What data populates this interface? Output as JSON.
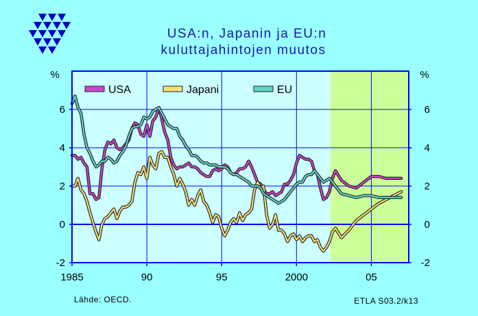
{
  "header": {
    "title_line1": "USA:n, Japanin ja EU:n",
    "title_line2": "kuluttajahintojen muutos"
  },
  "footer": {
    "source": "Lähde:  OECD.",
    "code": "ETLA S03.2/k13"
  },
  "colors": {
    "background": "#99ffff",
    "plot_background": "#ccffff",
    "forecast_background": "#ccff99",
    "frame": "#0000ff",
    "usa": "#cc44cc",
    "japan": "#f5e07a",
    "eu": "#5fd6c8",
    "logo": "#0000cc"
  },
  "chart_data": {
    "type": "line",
    "title": "USA:n, Japanin ja EU:n kuluttajahintojen muutos",
    "ylabel_left": "%",
    "ylabel_right": "%",
    "xlim": [
      1985,
      2007.5
    ],
    "ylim": [
      -2,
      8
    ],
    "x_ticks": [
      1985,
      1990,
      1995,
      2000,
      2005
    ],
    "x_tick_labels": [
      "1985",
      "90",
      "95",
      "2000",
      "05"
    ],
    "y_ticks": [
      -2,
      0,
      2,
      4,
      6
    ],
    "y_tick_labels": [
      "-2",
      "0",
      "2",
      "4",
      "6"
    ],
    "grid": true,
    "forecast_start": 2002.25,
    "legend_position": "top-left",
    "series": [
      {
        "name": "USA",
        "color_key": "usa",
        "points": [
          [
            1985.0,
            3.6
          ],
          [
            1985.2,
            3.6
          ],
          [
            1985.4,
            3.4
          ],
          [
            1985.6,
            3.5
          ],
          [
            1985.8,
            3.2
          ],
          [
            1986.0,
            3.0
          ],
          [
            1986.2,
            1.6
          ],
          [
            1986.4,
            1.6
          ],
          [
            1986.6,
            1.3
          ],
          [
            1986.8,
            1.4
          ],
          [
            1987.0,
            2.9
          ],
          [
            1987.2,
            3.9
          ],
          [
            1987.4,
            4.3
          ],
          [
            1987.6,
            4.2
          ],
          [
            1987.8,
            4.4
          ],
          [
            1988.0,
            4.0
          ],
          [
            1988.2,
            3.9
          ],
          [
            1988.4,
            4.0
          ],
          [
            1988.6,
            4.2
          ],
          [
            1988.8,
            4.4
          ],
          [
            1989.0,
            5.0
          ],
          [
            1989.2,
            5.3
          ],
          [
            1989.4,
            5.2
          ],
          [
            1989.6,
            4.7
          ],
          [
            1989.8,
            4.6
          ],
          [
            1990.0,
            5.2
          ],
          [
            1990.2,
            4.6
          ],
          [
            1990.4,
            5.4
          ],
          [
            1990.6,
            5.6
          ],
          [
            1990.8,
            6.1
          ],
          [
            1991.0,
            5.5
          ],
          [
            1991.2,
            4.8
          ],
          [
            1991.4,
            4.4
          ],
          [
            1991.6,
            3.5
          ],
          [
            1991.8,
            3.1
          ],
          [
            1992.0,
            2.9
          ],
          [
            1992.2,
            3.0
          ],
          [
            1992.4,
            3.0
          ],
          [
            1992.6,
            3.1
          ],
          [
            1992.8,
            3.2
          ],
          [
            1993.0,
            3.0
          ],
          [
            1993.2,
            3.0
          ],
          [
            1993.4,
            2.9
          ],
          [
            1993.6,
            2.7
          ],
          [
            1993.8,
            2.6
          ],
          [
            1994.0,
            2.5
          ],
          [
            1994.2,
            2.5
          ],
          [
            1994.4,
            2.8
          ],
          [
            1994.6,
            2.9
          ],
          [
            1994.8,
            2.8
          ],
          [
            1995.0,
            2.9
          ],
          [
            1995.2,
            3.1
          ],
          [
            1995.4,
            3.0
          ],
          [
            1995.6,
            2.7
          ],
          [
            1995.8,
            2.6
          ],
          [
            1996.0,
            2.7
          ],
          [
            1996.2,
            2.9
          ],
          [
            1996.4,
            2.9
          ],
          [
            1996.6,
            3.0
          ],
          [
            1996.8,
            3.3
          ],
          [
            1997.0,
            3.0
          ],
          [
            1997.2,
            2.6
          ],
          [
            1997.4,
            2.2
          ],
          [
            1997.6,
            2.1
          ],
          [
            1997.8,
            1.8
          ],
          [
            1998.0,
            1.6
          ],
          [
            1998.2,
            1.6
          ],
          [
            1998.4,
            1.7
          ],
          [
            1998.6,
            1.5
          ],
          [
            1998.8,
            1.6
          ],
          [
            1999.0,
            1.7
          ],
          [
            1999.2,
            2.1
          ],
          [
            1999.4,
            2.1
          ],
          [
            1999.6,
            2.3
          ],
          [
            1999.8,
            2.6
          ],
          [
            2000.0,
            3.2
          ],
          [
            2000.2,
            3.6
          ],
          [
            2000.4,
            3.5
          ],
          [
            2000.6,
            3.4
          ],
          [
            2000.8,
            3.4
          ],
          [
            2001.0,
            3.3
          ],
          [
            2001.2,
            2.8
          ],
          [
            2001.4,
            2.6
          ],
          [
            2001.6,
            1.9
          ],
          [
            2001.8,
            1.3
          ],
          [
            2002.0,
            1.4
          ],
          [
            2002.2,
            1.7
          ],
          [
            2002.4,
            2.4
          ],
          [
            2002.6,
            2.8
          ],
          [
            2003.0,
            2.3
          ],
          [
            2003.5,
            2.0
          ],
          [
            2004.0,
            1.9
          ],
          [
            2004.5,
            2.2
          ],
          [
            2005.0,
            2.5
          ],
          [
            2005.5,
            2.5
          ],
          [
            2006.0,
            2.4
          ],
          [
            2007.0,
            2.4
          ]
        ]
      },
      {
        "name": "Japani",
        "color_key": "japan",
        "points": [
          [
            1985.0,
            2.0
          ],
          [
            1985.2,
            2.0
          ],
          [
            1985.4,
            2.4
          ],
          [
            1985.6,
            1.8
          ],
          [
            1985.8,
            1.6
          ],
          [
            1986.0,
            1.2
          ],
          [
            1986.2,
            0.6
          ],
          [
            1986.4,
            0.1
          ],
          [
            1986.6,
            -0.4
          ],
          [
            1986.8,
            -0.8
          ],
          [
            1987.0,
            0.0
          ],
          [
            1987.2,
            0.3
          ],
          [
            1987.4,
            0.4
          ],
          [
            1987.6,
            0.6
          ],
          [
            1987.8,
            0.8
          ],
          [
            1988.0,
            0.3
          ],
          [
            1988.2,
            0.7
          ],
          [
            1988.4,
            0.9
          ],
          [
            1988.6,
            0.9
          ],
          [
            1988.8,
            1.0
          ],
          [
            1989.0,
            1.2
          ],
          [
            1989.2,
            2.2
          ],
          [
            1989.4,
            2.7
          ],
          [
            1989.6,
            2.6
          ],
          [
            1989.8,
            3.0
          ],
          [
            1990.0,
            2.4
          ],
          [
            1990.2,
            3.5
          ],
          [
            1990.4,
            3.1
          ],
          [
            1990.6,
            2.9
          ],
          [
            1990.8,
            3.7
          ],
          [
            1991.0,
            3.8
          ],
          [
            1991.2,
            3.5
          ],
          [
            1991.4,
            3.5
          ],
          [
            1991.6,
            3.0
          ],
          [
            1991.8,
            2.6
          ],
          [
            1992.0,
            2.0
          ],
          [
            1992.2,
            2.4
          ],
          [
            1992.4,
            2.1
          ],
          [
            1992.6,
            1.7
          ],
          [
            1992.8,
            1.0
          ],
          [
            1993.0,
            1.3
          ],
          [
            1993.2,
            1.0
          ],
          [
            1993.4,
            1.5
          ],
          [
            1993.6,
            1.8
          ],
          [
            1993.8,
            1.2
          ],
          [
            1994.0,
            1.0
          ],
          [
            1994.2,
            0.6
          ],
          [
            1994.4,
            0.1
          ],
          [
            1994.6,
            0.5
          ],
          [
            1994.8,
            0.4
          ],
          [
            1995.0,
            -0.2
          ],
          [
            1995.2,
            -0.6
          ],
          [
            1995.4,
            -0.3
          ],
          [
            1995.6,
            0.1
          ],
          [
            1995.8,
            0.3
          ],
          [
            1996.0,
            0.1
          ],
          [
            1996.2,
            0.6
          ],
          [
            1996.4,
            0.2
          ],
          [
            1996.6,
            0.5
          ],
          [
            1996.8,
            0.6
          ],
          [
            1997.0,
            0.8
          ],
          [
            1997.2,
            1.8
          ],
          [
            1997.4,
            2.2
          ],
          [
            1997.6,
            1.9
          ],
          [
            1997.8,
            2.0
          ],
          [
            1998.0,
            0.5
          ],
          [
            1998.2,
            -0.2
          ],
          [
            1998.4,
            0.0
          ],
          [
            1998.6,
            0.5
          ],
          [
            1998.8,
            -0.3
          ],
          [
            1999.0,
            -0.3
          ],
          [
            1999.2,
            -0.5
          ],
          [
            1999.4,
            -0.9
          ],
          [
            1999.6,
            -0.6
          ],
          [
            1999.8,
            -0.5
          ],
          [
            2000.0,
            -0.8
          ],
          [
            2000.2,
            -0.6
          ],
          [
            2000.4,
            -0.9
          ],
          [
            2000.6,
            -0.7
          ],
          [
            2000.8,
            -0.6
          ],
          [
            2001.0,
            -0.6
          ],
          [
            2001.2,
            -0.9
          ],
          [
            2001.4,
            -0.8
          ],
          [
            2001.6,
            -1.2
          ],
          [
            2001.8,
            -1.4
          ],
          [
            2002.0,
            -1.2
          ],
          [
            2002.2,
            -0.9
          ],
          [
            2002.4,
            -0.4
          ],
          [
            2002.6,
            -0.2
          ],
          [
            2003.0,
            -0.7
          ],
          [
            2003.5,
            -0.3
          ],
          [
            2004.0,
            0.2
          ],
          [
            2004.5,
            0.5
          ],
          [
            2005.0,
            0.8
          ],
          [
            2005.5,
            1.1
          ],
          [
            2006.0,
            1.3
          ],
          [
            2006.5,
            1.5
          ],
          [
            2007.0,
            1.7
          ]
        ]
      },
      {
        "name": "EU",
        "color_key": "eu",
        "points": [
          [
            1985.0,
            6.3
          ],
          [
            1985.2,
            6.7
          ],
          [
            1985.4,
            6.1
          ],
          [
            1985.6,
            5.8
          ],
          [
            1985.8,
            4.7
          ],
          [
            1986.0,
            4.0
          ],
          [
            1986.2,
            3.7
          ],
          [
            1986.4,
            3.3
          ],
          [
            1986.6,
            3.0
          ],
          [
            1986.8,
            3.1
          ],
          [
            1987.0,
            3.3
          ],
          [
            1987.2,
            3.3
          ],
          [
            1987.4,
            3.5
          ],
          [
            1987.6,
            3.4
          ],
          [
            1987.8,
            3.2
          ],
          [
            1988.0,
            3.3
          ],
          [
            1988.2,
            3.6
          ],
          [
            1988.4,
            3.8
          ],
          [
            1988.6,
            4.1
          ],
          [
            1988.8,
            4.6
          ],
          [
            1989.0,
            5.0
          ],
          [
            1989.2,
            5.1
          ],
          [
            1989.4,
            5.1
          ],
          [
            1989.6,
            5.2
          ],
          [
            1989.8,
            5.6
          ],
          [
            1990.0,
            5.5
          ],
          [
            1990.2,
            5.6
          ],
          [
            1990.4,
            5.9
          ],
          [
            1990.6,
            6.0
          ],
          [
            1990.8,
            6.1
          ],
          [
            1991.0,
            5.8
          ],
          [
            1991.2,
            5.5
          ],
          [
            1991.4,
            5.2
          ],
          [
            1991.6,
            5.1
          ],
          [
            1991.8,
            5.0
          ],
          [
            1992.0,
            5.0
          ],
          [
            1992.2,
            4.6
          ],
          [
            1992.4,
            4.4
          ],
          [
            1992.6,
            4.1
          ],
          [
            1992.8,
            3.9
          ],
          [
            1993.0,
            3.6
          ],
          [
            1993.2,
            3.6
          ],
          [
            1993.4,
            3.5
          ],
          [
            1993.6,
            3.3
          ],
          [
            1993.8,
            3.2
          ],
          [
            1994.0,
            3.2
          ],
          [
            1994.2,
            3.1
          ],
          [
            1994.4,
            3.1
          ],
          [
            1994.6,
            3.1
          ],
          [
            1994.8,
            3.0
          ],
          [
            1995.0,
            3.0
          ],
          [
            1995.2,
            3.0
          ],
          [
            1995.4,
            2.9
          ],
          [
            1995.6,
            2.7
          ],
          [
            1995.8,
            2.6
          ],
          [
            1996.0,
            2.6
          ],
          [
            1996.2,
            2.5
          ],
          [
            1996.4,
            2.4
          ],
          [
            1996.6,
            2.3
          ],
          [
            1996.8,
            2.2
          ],
          [
            1997.0,
            2.0
          ],
          [
            1997.2,
            2.0
          ],
          [
            1997.4,
            2.0
          ],
          [
            1997.6,
            1.9
          ],
          [
            1997.8,
            1.6
          ],
          [
            1998.0,
            1.5
          ],
          [
            1998.2,
            1.4
          ],
          [
            1998.4,
            1.3
          ],
          [
            1998.6,
            1.2
          ],
          [
            1998.8,
            1.1
          ],
          [
            1999.0,
            1.2
          ],
          [
            1999.2,
            1.3
          ],
          [
            1999.4,
            1.5
          ],
          [
            1999.6,
            1.7
          ],
          [
            1999.8,
            1.9
          ],
          [
            2000.0,
            2.1
          ],
          [
            2000.2,
            2.2
          ],
          [
            2000.4,
            2.2
          ],
          [
            2000.6,
            2.5
          ],
          [
            2000.8,
            2.6
          ],
          [
            2001.0,
            2.6
          ],
          [
            2001.2,
            2.8
          ],
          [
            2001.4,
            2.6
          ],
          [
            2001.6,
            2.4
          ],
          [
            2001.8,
            2.2
          ],
          [
            2002.0,
            2.3
          ],
          [
            2002.2,
            2.4
          ],
          [
            2002.4,
            2.2
          ],
          [
            2002.6,
            2.0
          ],
          [
            2003.0,
            1.6
          ],
          [
            2003.5,
            1.5
          ],
          [
            2004.0,
            1.4
          ],
          [
            2004.5,
            1.5
          ],
          [
            2005.0,
            1.5
          ],
          [
            2005.5,
            1.4
          ],
          [
            2006.0,
            1.4
          ],
          [
            2007.0,
            1.4
          ]
        ]
      }
    ]
  }
}
